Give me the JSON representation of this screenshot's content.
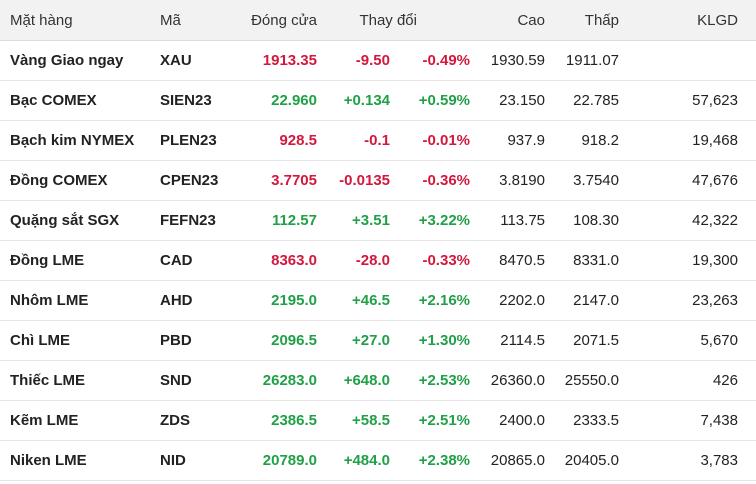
{
  "columns": {
    "name": "Mặt hàng",
    "code": "Mã",
    "close": "Đóng cửa",
    "change": "Thay đổi",
    "high": "Cao",
    "low": "Thấp",
    "volume": "KLGD"
  },
  "colors": {
    "up": "#20a047",
    "down": "#d4183d",
    "header_bg": "#f2f2f2"
  },
  "rows": [
    {
      "name": "Vàng Giao ngay",
      "code": "XAU",
      "close": "1913.35",
      "change": "-9.50",
      "pct": "-0.49%",
      "high": "1930.59",
      "low": "1911.07",
      "volume": "",
      "trend": "down"
    },
    {
      "name": "Bạc COMEX",
      "code": "SIEN23",
      "close": "22.960",
      "change": "+0.134",
      "pct": "+0.59%",
      "high": "23.150",
      "low": "22.785",
      "volume": "57,623",
      "trend": "up"
    },
    {
      "name": "Bạch kim NYMEX",
      "code": "PLEN23",
      "close": "928.5",
      "change": "-0.1",
      "pct": "-0.01%",
      "high": "937.9",
      "low": "918.2",
      "volume": "19,468",
      "trend": "down"
    },
    {
      "name": "Đồng COMEX",
      "code": "CPEN23",
      "close": "3.7705",
      "change": "-0.0135",
      "pct": "-0.36%",
      "high": "3.8190",
      "low": "3.7540",
      "volume": "47,676",
      "trend": "down"
    },
    {
      "name": "Quặng sắt SGX",
      "code": "FEFN23",
      "close": "112.57",
      "change": "+3.51",
      "pct": "+3.22%",
      "high": "113.75",
      "low": "108.30",
      "volume": "42,322",
      "trend": "up"
    },
    {
      "name": "Đồng LME",
      "code": "CAD",
      "close": "8363.0",
      "change": "-28.0",
      "pct": "-0.33%",
      "high": "8470.5",
      "low": "8331.0",
      "volume": "19,300",
      "trend": "down"
    },
    {
      "name": "Nhôm LME",
      "code": "AHD",
      "close": "2195.0",
      "change": "+46.5",
      "pct": "+2.16%",
      "high": "2202.0",
      "low": "2147.0",
      "volume": "23,263",
      "trend": "up"
    },
    {
      "name": "Chì LME",
      "code": "PBD",
      "close": "2096.5",
      "change": "+27.0",
      "pct": "+1.30%",
      "high": "2114.5",
      "low": "2071.5",
      "volume": "5,670",
      "trend": "up"
    },
    {
      "name": "Thiếc LME",
      "code": "SND",
      "close": "26283.0",
      "change": "+648.0",
      "pct": "+2.53%",
      "high": "26360.0",
      "low": "25550.0",
      "volume": "426",
      "trend": "up"
    },
    {
      "name": "Kẽm LME",
      "code": "ZDS",
      "close": "2386.5",
      "change": "+58.5",
      "pct": "+2.51%",
      "high": "2400.0",
      "low": "2333.5",
      "volume": "7,438",
      "trend": "up"
    },
    {
      "name": "Niken LME",
      "code": "NID",
      "close": "20789.0",
      "change": "+484.0",
      "pct": "+2.38%",
      "high": "20865.0",
      "low": "20405.0",
      "volume": "3,783",
      "trend": "up"
    }
  ]
}
